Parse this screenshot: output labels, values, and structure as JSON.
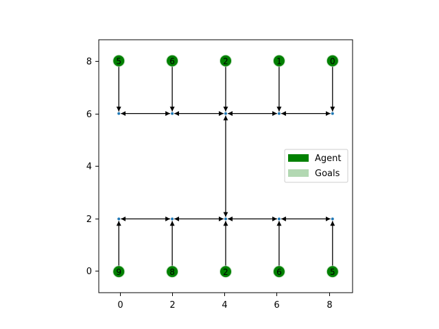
{
  "chart_data": {
    "type": "scatter",
    "title": "",
    "xlabel": "",
    "ylabel": "",
    "xlim": [
      -0.75,
      8.75
    ],
    "ylim": [
      -0.8,
      8.8
    ],
    "xticks": [
      0,
      2,
      4,
      6,
      8
    ],
    "yticks": [
      0,
      2,
      4,
      6,
      8
    ],
    "xtick_labels": [
      "0",
      "2",
      "4",
      "6",
      "8"
    ],
    "ytick_labels": [
      "0",
      "2",
      "4",
      "6",
      "8"
    ],
    "grid": false,
    "legend": {
      "placement": "center-right",
      "entries": [
        {
          "label": "Agent",
          "color": "#008000"
        },
        {
          "label": "Goals",
          "color": "#b2d8b2"
        }
      ]
    },
    "waypoints": [
      [
        0,
        6
      ],
      [
        2,
        6
      ],
      [
        4,
        6
      ],
      [
        6,
        6
      ],
      [
        8,
        6
      ],
      [
        0,
        2
      ],
      [
        2,
        2
      ],
      [
        4,
        2
      ],
      [
        6,
        2
      ],
      [
        8,
        2
      ]
    ],
    "agents": [
      {
        "x": 0,
        "y": 8,
        "label": "5"
      },
      {
        "x": 2,
        "y": 8,
        "label": "6"
      },
      {
        "x": 4,
        "y": 8,
        "label": "2"
      },
      {
        "x": 6,
        "y": 8,
        "label": "1"
      },
      {
        "x": 8,
        "y": 8,
        "label": "0"
      },
      {
        "x": 0,
        "y": 0,
        "label": "9"
      },
      {
        "x": 2,
        "y": 0,
        "label": "8"
      },
      {
        "x": 4,
        "y": 0,
        "label": "2"
      },
      {
        "x": 6,
        "y": 0,
        "label": "6"
      },
      {
        "x": 8,
        "y": 0,
        "label": "5"
      }
    ],
    "edges": [
      {
        "from": [
          0,
          8
        ],
        "to": [
          0,
          6
        ],
        "arrows": "end"
      },
      {
        "from": [
          2,
          8
        ],
        "to": [
          2,
          6
        ],
        "arrows": "end"
      },
      {
        "from": [
          4,
          8
        ],
        "to": [
          4,
          6
        ],
        "arrows": "end"
      },
      {
        "from": [
          6,
          8
        ],
        "to": [
          6,
          6
        ],
        "arrows": "end"
      },
      {
        "from": [
          8,
          8
        ],
        "to": [
          8,
          6
        ],
        "arrows": "end"
      },
      {
        "from": [
          0,
          6
        ],
        "to": [
          2,
          6
        ],
        "arrows": "both"
      },
      {
        "from": [
          2,
          6
        ],
        "to": [
          4,
          6
        ],
        "arrows": "both"
      },
      {
        "from": [
          4,
          6
        ],
        "to": [
          6,
          6
        ],
        "arrows": "both"
      },
      {
        "from": [
          6,
          6
        ],
        "to": [
          8,
          6
        ],
        "arrows": "both"
      },
      {
        "from": [
          4,
          6
        ],
        "to": [
          4,
          2
        ],
        "arrows": "both"
      },
      {
        "from": [
          0,
          2
        ],
        "to": [
          2,
          2
        ],
        "arrows": "both"
      },
      {
        "from": [
          2,
          2
        ],
        "to": [
          4,
          2
        ],
        "arrows": "both"
      },
      {
        "from": [
          4,
          2
        ],
        "to": [
          6,
          2
        ],
        "arrows": "both"
      },
      {
        "from": [
          6,
          2
        ],
        "to": [
          8,
          2
        ],
        "arrows": "both"
      },
      {
        "from": [
          0,
          0
        ],
        "to": [
          0,
          2
        ],
        "arrows": "end"
      },
      {
        "from": [
          2,
          0
        ],
        "to": [
          2,
          2
        ],
        "arrows": "end"
      },
      {
        "from": [
          4,
          0
        ],
        "to": [
          4,
          2
        ],
        "arrows": "end"
      },
      {
        "from": [
          6,
          0
        ],
        "to": [
          6,
          2
        ],
        "arrows": "end"
      },
      {
        "from": [
          8,
          0
        ],
        "to": [
          8,
          2
        ],
        "arrows": "end"
      }
    ],
    "colors": {
      "agent": "#008000",
      "goal": "#b2d8b2",
      "waypoint": "#1f77b4",
      "edge": "#000000"
    }
  }
}
